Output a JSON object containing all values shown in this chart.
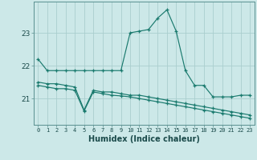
{
  "xlabel": "Humidex (Indice chaleur)",
  "x_values": [
    0,
    1,
    2,
    3,
    4,
    5,
    6,
    7,
    8,
    9,
    10,
    11,
    12,
    13,
    14,
    15,
    16,
    17,
    18,
    19,
    20,
    21,
    22,
    23
  ],
  "line1": [
    22.2,
    21.85,
    21.85,
    21.85,
    21.85,
    21.85,
    21.85,
    21.85,
    21.85,
    21.85,
    23.0,
    23.05,
    23.1,
    23.45,
    23.7,
    23.05,
    21.85,
    21.4,
    21.4,
    21.05,
    21.05,
    21.05,
    21.1,
    21.1
  ],
  "line2": [
    21.5,
    21.45,
    21.45,
    21.4,
    21.35,
    20.65,
    21.25,
    21.2,
    21.2,
    21.15,
    21.1,
    21.1,
    21.05,
    21.0,
    20.95,
    20.9,
    20.85,
    20.8,
    20.75,
    20.7,
    20.65,
    20.6,
    20.55,
    20.5
  ],
  "line3": [
    21.4,
    21.35,
    21.3,
    21.3,
    21.25,
    20.62,
    21.2,
    21.15,
    21.1,
    21.08,
    21.05,
    21.0,
    20.95,
    20.9,
    20.85,
    20.8,
    20.75,
    20.7,
    20.65,
    20.6,
    20.55,
    20.5,
    20.45,
    20.4
  ],
  "ylim": [
    20.2,
    23.95
  ],
  "yticks": [
    21,
    22,
    23
  ],
  "line_color": "#1a7a6e",
  "bg_color": "#cce8e8",
  "grid_color": "#aacece",
  "spine_color": "#5a9090"
}
